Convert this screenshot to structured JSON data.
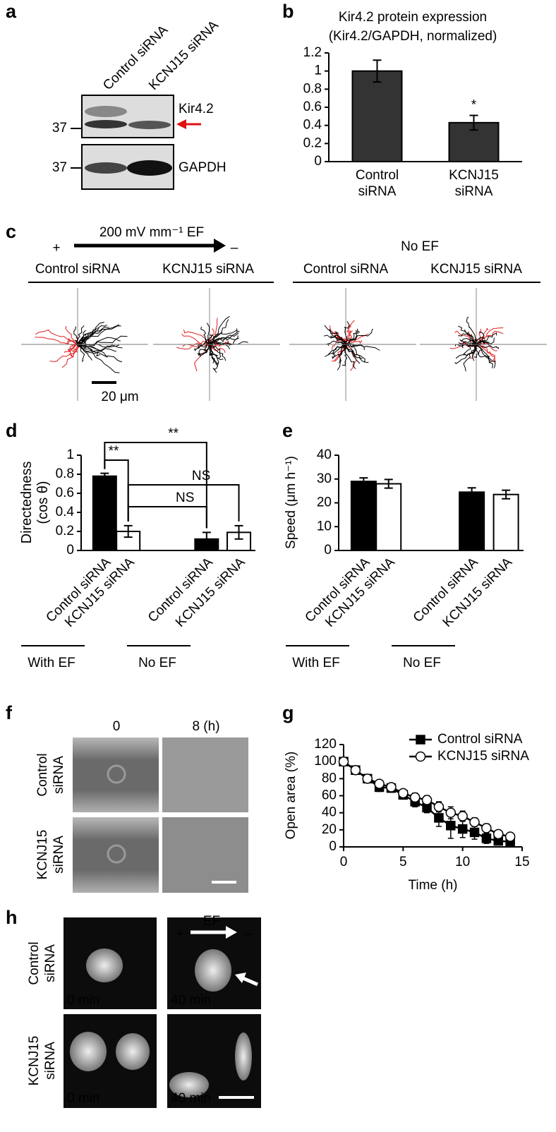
{
  "figure": {
    "panel_labels": [
      "a",
      "b",
      "c",
      "d",
      "e",
      "f",
      "g",
      "h"
    ],
    "a": {
      "lanes": [
        "Control siRNA",
        "KCNJ15 siRNA"
      ],
      "bands": [
        "Kir4.2",
        "GAPDH"
      ],
      "markers": [
        "37",
        "37"
      ]
    },
    "c": {
      "ef_label": "200 mV mm⁻¹ EF",
      "plus": "+",
      "minus": "–",
      "no_ef": "No EF",
      "groups": [
        "Control siRNA",
        "KCNJ15 siRNA",
        "Control siRNA",
        "KCNJ15 siRNA"
      ],
      "scale_bar": "20 μm"
    },
    "f": {
      "columns": [
        "0",
        "8 (h)"
      ],
      "rows": [
        "Control siRNA",
        "KCNJ15 siRNA"
      ]
    },
    "h": {
      "ef_label": "EF",
      "plus": "+",
      "minus": "–",
      "rows": [
        "Control siRNA",
        "KCNJ15 siRNA"
      ],
      "times": [
        [
          "0 min",
          "40 min"
        ],
        [
          "0 min",
          "40 min"
        ]
      ]
    }
  },
  "chart_data": [
    {
      "type": "bar",
      "title": "Kir4.2 protein expression",
      "subtitle": "(Kir4.2/GAPDH, normalized)",
      "categories": [
        "Control siRNA",
        "KCNJ15 siRNA"
      ],
      "values": [
        1,
        0.43
      ],
      "errors": [
        0.12,
        0.08
      ],
      "significance": [
        null,
        "*"
      ],
      "colors": [
        "#333333",
        "#333333"
      ],
      "ylim": [
        0,
        1.2
      ],
      "yticks": [
        0,
        0.2,
        0.4,
        0.6,
        0.8,
        1,
        1.2
      ]
    },
    {
      "type": "bar",
      "ylabel": "Directedness (cos θ)",
      "categories": [
        "Control siRNA",
        "KCNJ15 siRNA",
        "Control siRNA",
        "KCNJ15 siRNA"
      ],
      "groups": [
        "With EF",
        "No EF"
      ],
      "values": [
        0.78,
        0.2,
        0.12,
        0.19
      ],
      "errors": [
        0.03,
        0.06,
        0.07,
        0.07
      ],
      "colors": [
        "#000000",
        "#ffffff",
        "#000000",
        "#ffffff"
      ],
      "comparisons": [
        "**",
        "**",
        "NS",
        "NS"
      ],
      "ylim": [
        0,
        1
      ],
      "yticks": [
        0,
        0.2,
        0.4,
        0.6,
        0.8,
        1
      ]
    },
    {
      "type": "bar",
      "ylabel": "Speed (μm h⁻¹)",
      "categories": [
        "Control siRNA",
        "KCNJ15 siRNA",
        "Control siRNA",
        "KCNJ15 siRNA"
      ],
      "groups": [
        "With EF",
        "No EF"
      ],
      "values": [
        29,
        28,
        24.5,
        23.5
      ],
      "errors": [
        1.5,
        1.8,
        1.8,
        1.8
      ],
      "colors": [
        "#000000",
        "#ffffff",
        "#000000",
        "#ffffff"
      ],
      "ylim": [
        0,
        40
      ],
      "yticks": [
        0,
        10,
        20,
        30,
        40
      ]
    },
    {
      "type": "line",
      "xlabel": "Time (h)",
      "ylabel": "Open area (%)",
      "x": [
        0,
        1,
        2,
        3,
        4,
        5,
        6,
        7,
        8,
        9,
        10,
        11,
        12,
        13,
        14
      ],
      "series": [
        {
          "name": "Control siRNA",
          "color": "#000000",
          "marker": "square",
          "values": [
            100,
            90,
            80,
            70,
            69,
            61,
            53,
            46,
            34,
            25,
            21,
            17,
            10,
            7,
            6
          ],
          "errors": [
            0,
            3,
            4,
            5,
            5,
            5,
            6,
            6,
            10,
            15,
            10,
            8,
            6,
            4,
            4
          ]
        },
        {
          "name": "KCNJ15 siRNA",
          "color": "#ffffff",
          "marker": "circle",
          "values": [
            100,
            90,
            80,
            74,
            70,
            63,
            58,
            55,
            47,
            40,
            36,
            29,
            22,
            15,
            12
          ],
          "errors": [
            0,
            2,
            3,
            4,
            4,
            4,
            5,
            5,
            6,
            7,
            6,
            5,
            5,
            4,
            3
          ]
        }
      ],
      "xlim": [
        0,
        15
      ],
      "xticks": [
        0,
        5,
        10,
        15
      ],
      "ylim": [
        0,
        120
      ],
      "yticks": [
        0,
        20,
        40,
        60,
        80,
        100,
        120
      ]
    }
  ]
}
